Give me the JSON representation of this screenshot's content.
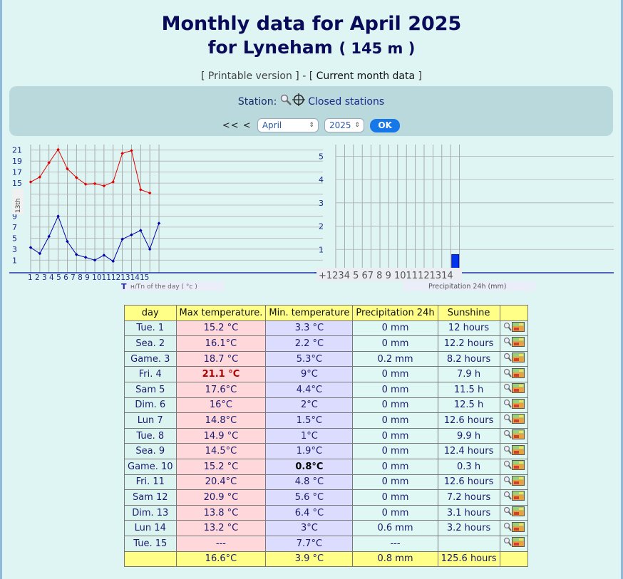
{
  "header": {
    "title_line1": "Monthly data for April 2025",
    "title_line2": "for Lyneham",
    "altitude": "( 145 m )"
  },
  "links": {
    "printable": "Printable version",
    "current": "Current month data"
  },
  "station": {
    "label": "Station:",
    "closed": "Closed stations"
  },
  "nav": {
    "prev": "<< <",
    "month": "April",
    "year": "2025",
    "ok": "OK"
  },
  "temp_chart": {
    "side_label": "13th",
    "legend_prefix": "T",
    "legend": "н/Tn of the day ( °c )",
    "y_ticks": [
      "21",
      "19",
      "17",
      "15",
      "13th",
      "9",
      "7",
      "5",
      "3",
      "1"
    ],
    "x_ticks": [
      "1",
      "2",
      "3",
      "4",
      "5",
      "6",
      "7",
      "8",
      "9",
      "10",
      "11",
      "12",
      "13",
      "14",
      "15"
    ],
    "x_ticks_text": "1 2 3 4 5 6 7 8 9 101112131415"
  },
  "precip_chart": {
    "legend": "Precipitation 24h (mm)",
    "y_ticks": [
      "5",
      "4",
      "3",
      "2",
      "1"
    ],
    "x_ticks_text": "+1234 5 67 8 9 1011121314"
  },
  "chart_data": [
    {
      "type": "line",
      "x": [
        1,
        2,
        3,
        4,
        5,
        6,
        7,
        8,
        9,
        10,
        11,
        12,
        13,
        14,
        15
      ],
      "series": [
        {
          "values": [
            15.2,
            16.1,
            18.7,
            21.1,
            17.6,
            16,
            14.8,
            14.9,
            14.5,
            15.2,
            20.4,
            20.9,
            13.8,
            13.2,
            null
          ],
          "color": "#dd0000"
        },
        {
          "values": [
            3.3,
            2.2,
            5.3,
            9,
            4.4,
            2,
            1.5,
            1,
            1.9,
            0.8,
            4.8,
            5.6,
            6.4,
            3,
            7.7
          ],
          "color": "#0000aa"
        }
      ],
      "xlabel": "T н/Tn of the day ( °c )",
      "ylim": [
        0,
        22
      ],
      "grid": true
    },
    {
      "type": "bar",
      "categories": [
        "1",
        "2",
        "3",
        "4",
        "5",
        "6",
        "7",
        "8",
        "9",
        "10",
        "11",
        "12",
        "13",
        "14"
      ],
      "values": [
        0,
        0,
        0.2,
        0,
        0,
        0,
        0,
        0,
        0,
        0,
        0,
        0,
        0,
        0.6
      ],
      "xlabel": "Precipitation 24h (mm)",
      "ylim": [
        0,
        5
      ],
      "grid": true,
      "color": "#0033ee"
    }
  ],
  "table": {
    "headers": [
      "day",
      "Max temperature.",
      "Min. temperature",
      "Precipitation 24h",
      "Sunshine"
    ],
    "rows": [
      {
        "day": "Tue. 1",
        "max": "15.2 °C",
        "min": "3.3 °C",
        "prec": "0 mm",
        "sun": "12 hours"
      },
      {
        "day": "Sea. 2",
        "max": "16.1°C",
        "min": "2.2 °C",
        "prec": "0 mm",
        "sun": "12.2 hours"
      },
      {
        "day": "Game. 3",
        "max": "18.7 °C",
        "min": "5.3°C",
        "prec": "0.2 mm",
        "sun": "8.2 hours"
      },
      {
        "day": "Fri. 4",
        "max": "21.1 °C",
        "min": "9°C",
        "prec": "0 mm",
        "sun": "7.9 h"
      },
      {
        "day": "Sam 5",
        "max": "17.6°C",
        "min": "4.4°C",
        "prec": "0 mm",
        "sun": "11.5 h"
      },
      {
        "day": "Dim. 6",
        "max": "16°C",
        "min": "2°C",
        "prec": "0 mm",
        "sun": "12.5 h"
      },
      {
        "day": "Lun 7",
        "max": "14.8°C",
        "min": "1.5°C",
        "prec": "0 mm",
        "sun": "12.6 hours"
      },
      {
        "day": "Tue. 8",
        "max": "14.9 °C",
        "min": "1°C",
        "prec": "0 mm",
        "sun": "9.9 h"
      },
      {
        "day": "Sea. 9",
        "max": "14.5°C",
        "min": "1.9°C",
        "prec": "0 mm",
        "sun": "12.4 hours"
      },
      {
        "day": "Game. 10",
        "max": "15.2 °C",
        "min": "0.8°C",
        "prec": "0 mm",
        "sun": "0.3 h"
      },
      {
        "day": "Fri. 11",
        "max": "20.4°C",
        "min": "4.8 °C",
        "prec": "0 mm",
        "sun": "12.6 hours"
      },
      {
        "day": "Sam 12",
        "max": "20.9 °C",
        "min": "5.6 °C",
        "prec": "0 mm",
        "sun": "7.2 hours"
      },
      {
        "day": "Dim. 13",
        "max": "13.8 °C",
        "min": "6.4 °C",
        "prec": "0 mm",
        "sun": "3.1 hours"
      },
      {
        "day": "Lun 14",
        "max": "13.2 °C",
        "min": "3°C",
        "prec": "0.6 mm",
        "sun": "3.2 hours"
      },
      {
        "day": "Tue. 15",
        "max": "---",
        "min": "7.7°C",
        "prec": "---",
        "sun": ""
      }
    ],
    "footer": {
      "day": "",
      "max": "16.6°C",
      "min": "3.9 °C",
      "prec": "0.8 mm",
      "sun": "125.6 hours"
    }
  },
  "colors": {
    "background": "#dff5f3",
    "tmax_line": "#dd0000",
    "tmin_line": "#0000aa",
    "header_yellow": "#ffff88",
    "ok_button": "#1677e8"
  }
}
